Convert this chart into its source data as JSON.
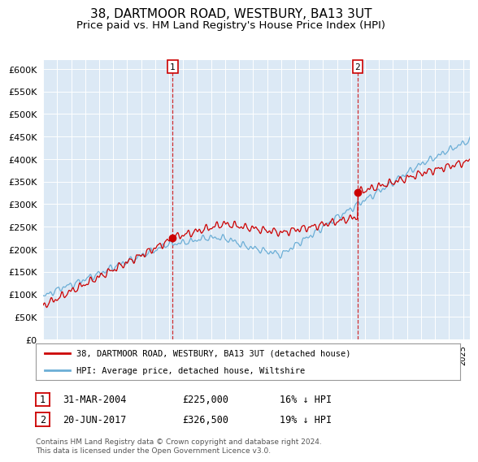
{
  "title": "38, DARTMOOR ROAD, WESTBURY, BA13 3UT",
  "subtitle": "Price paid vs. HM Land Registry's House Price Index (HPI)",
  "title_fontsize": 11,
  "subtitle_fontsize": 9.5,
  "ylim": [
    0,
    620000
  ],
  "yticks": [
    0,
    50000,
    100000,
    150000,
    200000,
    250000,
    300000,
    350000,
    400000,
    450000,
    500000,
    550000,
    600000
  ],
  "background_color": "#ffffff",
  "plot_bg_color": "#dce9f5",
  "grid_color": "#ffffff",
  "hpi_color": "#6baed6",
  "sold_color": "#cc0000",
  "annotation_color": "#cc0000",
  "sale1": {
    "date_num": 2004.25,
    "price": 225000,
    "label": "1"
  },
  "sale2": {
    "date_num": 2017.47,
    "price": 326500,
    "label": "2"
  },
  "legend_entries": [
    "38, DARTMOOR ROAD, WESTBURY, BA13 3UT (detached house)",
    "HPI: Average price, detached house, Wiltshire"
  ],
  "table_rows": [
    [
      "1",
      "31-MAR-2004",
      "£225,000",
      "16% ↓ HPI"
    ],
    [
      "2",
      "20-JUN-2017",
      "£326,500",
      "19% ↓ HPI"
    ]
  ],
  "footnote": "Contains HM Land Registry data © Crown copyright and database right 2024.\nThis data is licensed under the Open Government Licence v3.0.",
  "xmin": 1995,
  "xmax": 2025.5
}
